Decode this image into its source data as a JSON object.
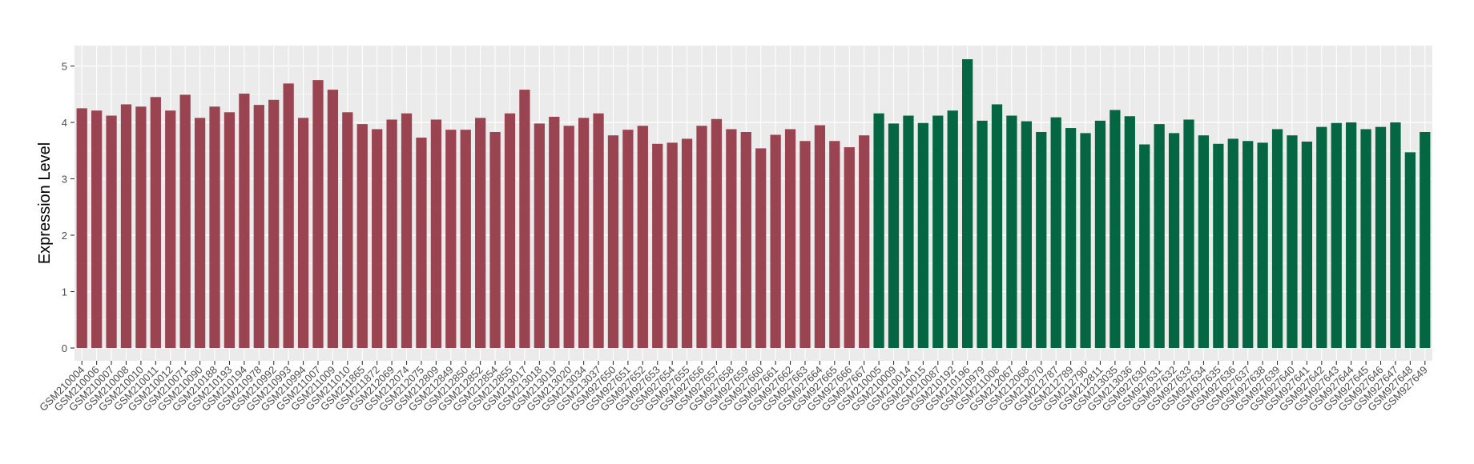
{
  "chart_data": {
    "type": "bar",
    "title": "",
    "xlabel": "",
    "ylabel": "Expression Level",
    "ylim": [
      0,
      5.25
    ],
    "yticks": [
      0,
      1,
      2,
      3,
      4,
      5
    ],
    "grid": true,
    "legend": "none",
    "colors": {
      "group1": "#9a4451",
      "group2": "#046642",
      "panel": "#ebebeb",
      "grid": "#ffffff"
    },
    "categories": [
      "GSM210004",
      "GSM210006",
      "GSM210007",
      "GSM210008",
      "GSM210010",
      "GSM210011",
      "GSM210012",
      "GSM210071",
      "GSM210090",
      "GSM210188",
      "GSM210193",
      "GSM210194",
      "GSM210978",
      "GSM210992",
      "GSM210993",
      "GSM210994",
      "GSM211007",
      "GSM211009",
      "GSM211010",
      "GSM211865",
      "GSM211872",
      "GSM212069",
      "GSM212074",
      "GSM212075",
      "GSM212809",
      "GSM212849",
      "GSM212850",
      "GSM212852",
      "GSM212854",
      "GSM212855",
      "GSM213017",
      "GSM213018",
      "GSM213019",
      "GSM213020",
      "GSM213034",
      "GSM213037",
      "GSM927650",
      "GSM927651",
      "GSM927652",
      "GSM927653",
      "GSM927654",
      "GSM927655",
      "GSM927656",
      "GSM927657",
      "GSM927658",
      "GSM927659",
      "GSM927660",
      "GSM927661",
      "GSM927662",
      "GSM927663",
      "GSM927664",
      "GSM927665",
      "GSM927666",
      "GSM927667",
      "GSM210005",
      "GSM210009",
      "GSM210014",
      "GSM210015",
      "GSM210087",
      "GSM210192",
      "GSM210196",
      "GSM210979",
      "GSM211008",
      "GSM212067",
      "GSM212068",
      "GSM212070",
      "GSM212787",
      "GSM212789",
      "GSM212790",
      "GSM212811",
      "GSM213035",
      "GSM213036",
      "GSM927630",
      "GSM927631",
      "GSM927632",
      "GSM927633",
      "GSM927634",
      "GSM927635",
      "GSM927636",
      "GSM927637",
      "GSM927638",
      "GSM927639",
      "GSM927640",
      "GSM927641",
      "GSM927642",
      "GSM927643",
      "GSM927644",
      "GSM927645",
      "GSM927646",
      "GSM927647",
      "GSM927648",
      "GSM927649"
    ],
    "values": [
      4.25,
      4.21,
      4.12,
      4.32,
      4.28,
      4.45,
      4.21,
      4.49,
      4.08,
      4.28,
      4.18,
      4.51,
      4.31,
      4.4,
      4.69,
      4.08,
      4.75,
      4.58,
      4.18,
      3.97,
      3.88,
      4.05,
      4.16,
      3.73,
      4.05,
      3.87,
      3.87,
      4.08,
      3.83,
      4.16,
      4.58,
      3.98,
      4.1,
      3.94,
      4.08,
      4.16,
      3.77,
      3.87,
      3.94,
      3.62,
      3.64,
      3.71,
      3.94,
      4.06,
      3.88,
      3.83,
      3.54,
      3.78,
      3.88,
      3.67,
      3.95,
      3.67,
      3.56,
      3.77,
      4.16,
      3.98,
      4.12,
      3.99,
      4.12,
      4.21,
      5.12,
      4.03,
      4.32,
      4.12,
      4.02,
      3.83,
      4.09,
      3.9,
      3.81,
      4.03,
      4.22,
      4.11,
      3.61,
      3.97,
      3.81,
      4.05,
      3.77,
      3.62,
      3.71,
      3.67,
      3.64,
      3.88,
      3.77,
      3.66,
      3.92,
      3.99,
      4.0,
      3.88,
      3.92,
      4.0,
      3.47,
      3.83
    ],
    "groups": [
      1,
      1,
      1,
      1,
      1,
      1,
      1,
      1,
      1,
      1,
      1,
      1,
      1,
      1,
      1,
      1,
      1,
      1,
      1,
      1,
      1,
      1,
      1,
      1,
      1,
      1,
      1,
      1,
      1,
      1,
      1,
      1,
      1,
      1,
      1,
      1,
      1,
      1,
      1,
      1,
      1,
      1,
      1,
      1,
      1,
      1,
      1,
      1,
      1,
      1,
      1,
      1,
      1,
      1,
      2,
      2,
      2,
      2,
      2,
      2,
      2,
      2,
      2,
      2,
      2,
      2,
      2,
      2,
      2,
      2,
      2,
      2,
      2,
      2,
      2,
      2,
      2,
      2,
      2,
      2,
      2,
      2,
      2,
      2,
      2,
      2,
      2,
      2,
      2,
      2,
      2,
      2
    ]
  }
}
